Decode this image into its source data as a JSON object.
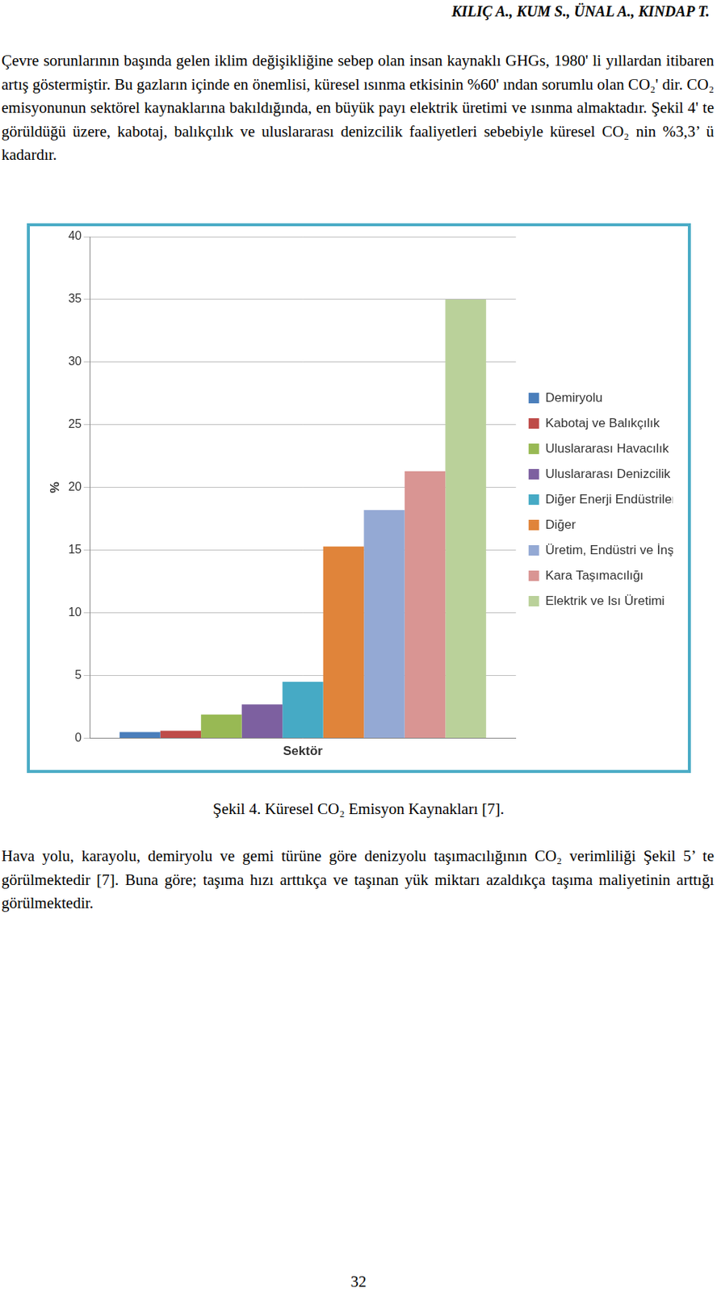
{
  "header": "KILIÇ A., KUM S., ÜNAL A., KINDAP T.",
  "paragraphs": [
    "Çevre sorunlarının başında gelen iklim değişikliğine sebep olan insan kaynaklı GHGs, 1980' li yıllardan itibaren artış göstermiştir. Bu gazların içinde en önemlisi, küresel ısınma etkisinin %60' ından sorumlu olan CO₂' dir. CO₂ emisyonunun sektörel kaynaklarına bakıldığında, en büyük payı elektrik üretimi ve ısınma almaktadır. Şekil 4' te görüldüğü üzere, kabotaj, balıkçılık ve uluslararası denizcilik faaliyetleri sebebiyle küresel CO₂ nin %3,3’ ü kadardır."
  ],
  "chart_data": {
    "type": "bar",
    "x_label": "Sektör",
    "y_label": "%",
    "categories": [
      null
    ],
    "series": [
      {
        "name": "Demiryolu",
        "color": "#4a7ebb",
        "values": [
          0.5
        ]
      },
      {
        "name": "Kabotaj ve Balıkçılık",
        "color": "#be4b48",
        "values": [
          0.6
        ]
      },
      {
        "name": "Uluslararası Havacılık",
        "color": "#98b954",
        "values": [
          1.9
        ]
      },
      {
        "name": "Uluslararası Denizcilik",
        "color": "#7d60a0",
        "values": [
          2.7
        ]
      },
      {
        "name": "Diğer Enerji Endüstrileri",
        "color": "#46aac5",
        "values": [
          4.5
        ]
      },
      {
        "name": "Diğer",
        "color": "#e0843a",
        "values": [
          15.3
        ]
      },
      {
        "name": "Üretim, Endüstri ve İnşaat",
        "color": "#94a9d4",
        "values": [
          18.2
        ]
      },
      {
        "name": "Kara Taşımacılığı",
        "color": "#d99593",
        "values": [
          21.3
        ]
      },
      {
        "name": "Elektrik ve Isı Üretimi",
        "color": "#bad19a",
        "values": [
          35
        ]
      }
    ],
    "ylim": [
      0,
      40
    ],
    "yticks": [
      0,
      5,
      10,
      15,
      20,
      25,
      30,
      35,
      40
    ],
    "grid": true,
    "legend": "right",
    "tick_labels": "y"
  },
  "caption": "Şekil 4. Küresel CO₂ Emisyon Kaynakları [7].",
  "after_paragraphs": [
    "Hava yolu, karayolu, demiryolu ve gemi türüne göre denizyolu taşımacılığının CO₂ verimliliği Şekil 5’ te görülmektedir [7]. Buna göre; taşıma hızı arttıkça ve taşınan yük miktarı azaldıkça taşıma maliyetinin arttığı görülmektedir."
  ],
  "page_number": "32"
}
